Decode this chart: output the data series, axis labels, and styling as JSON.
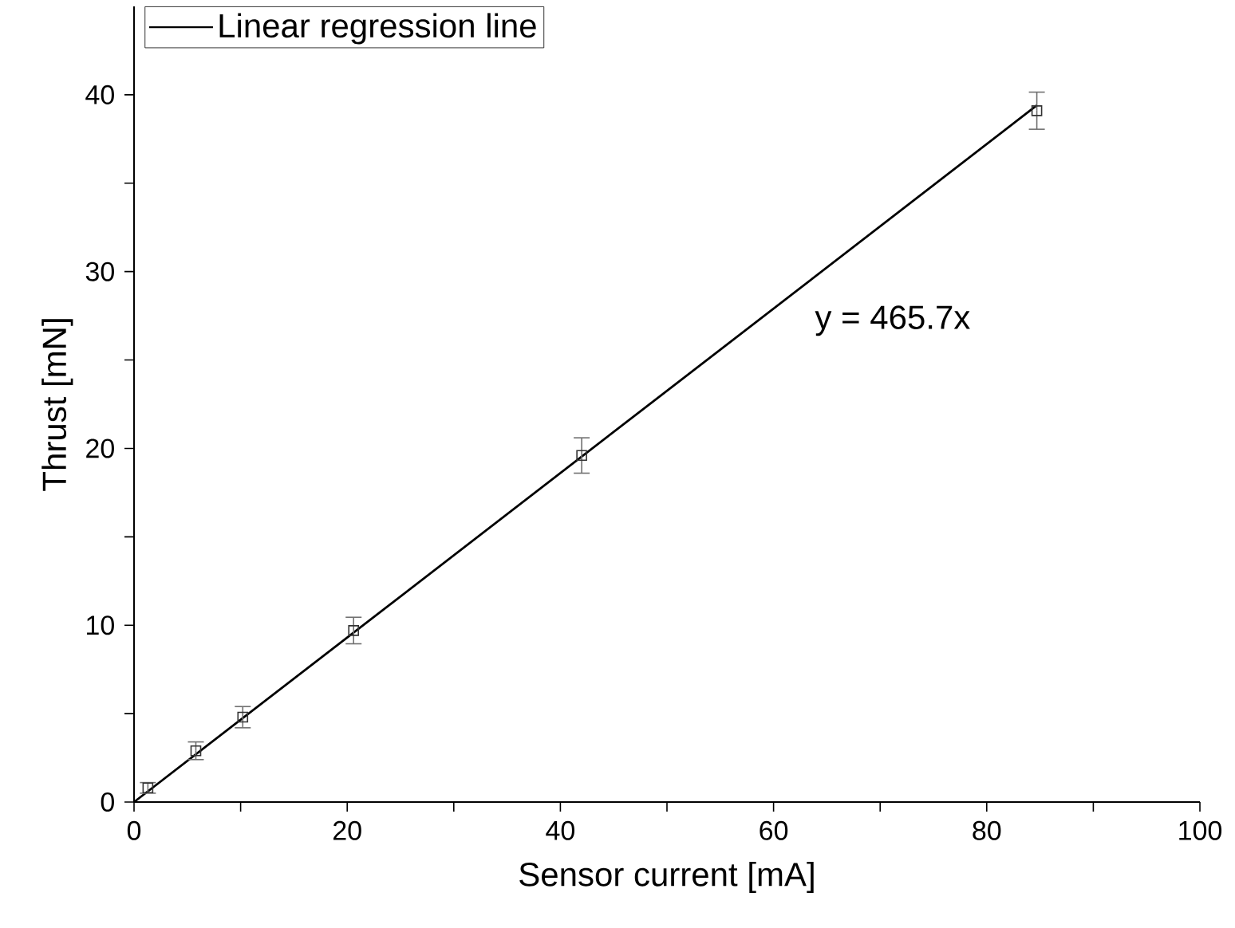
{
  "chart_data": {
    "type": "scatter",
    "xlabel": "Sensor current [mA]",
    "ylabel": "Thrust [mN]",
    "annotations": [
      "y = 465.7x"
    ],
    "series": [
      {
        "type": "line",
        "name": "Linear regression line",
        "color": "#000000",
        "x": [
          0,
          84.7
        ],
        "values": [
          0,
          39.4
        ],
        "marker": "none",
        "line_style": "solid"
      },
      {
        "color": "#333333",
        "x": [
          1.3,
          5.8,
          10.2,
          20.6,
          42,
          84.7
        ],
        "values": [
          0.8,
          2.9,
          4.8,
          9.7,
          19.6,
          39.1
        ],
        "errors": [
          0.3,
          0.5,
          0.6,
          0.75,
          1.0,
          1.05
        ],
        "marker": "square"
      }
    ],
    "xlim": [
      0,
      100
    ],
    "ylim": [
      0,
      45
    ],
    "xticks": [
      0,
      {
        "value": 10,
        "label": null
      },
      20,
      {
        "value": 30,
        "label": null
      },
      40,
      {
        "value": 50,
        "label": null
      },
      60,
      {
        "value": 70,
        "label": null
      },
      80,
      {
        "value": 90,
        "label": null
      },
      100
    ],
    "yticks": [
      0,
      {
        "value": 5,
        "label": null
      },
      10,
      {
        "value": 15,
        "label": null
      },
      20,
      {
        "value": 25,
        "label": null
      },
      30,
      {
        "value": 35,
        "label": null
      },
      40
    ],
    "legend": "top left",
    "grid": false
  }
}
